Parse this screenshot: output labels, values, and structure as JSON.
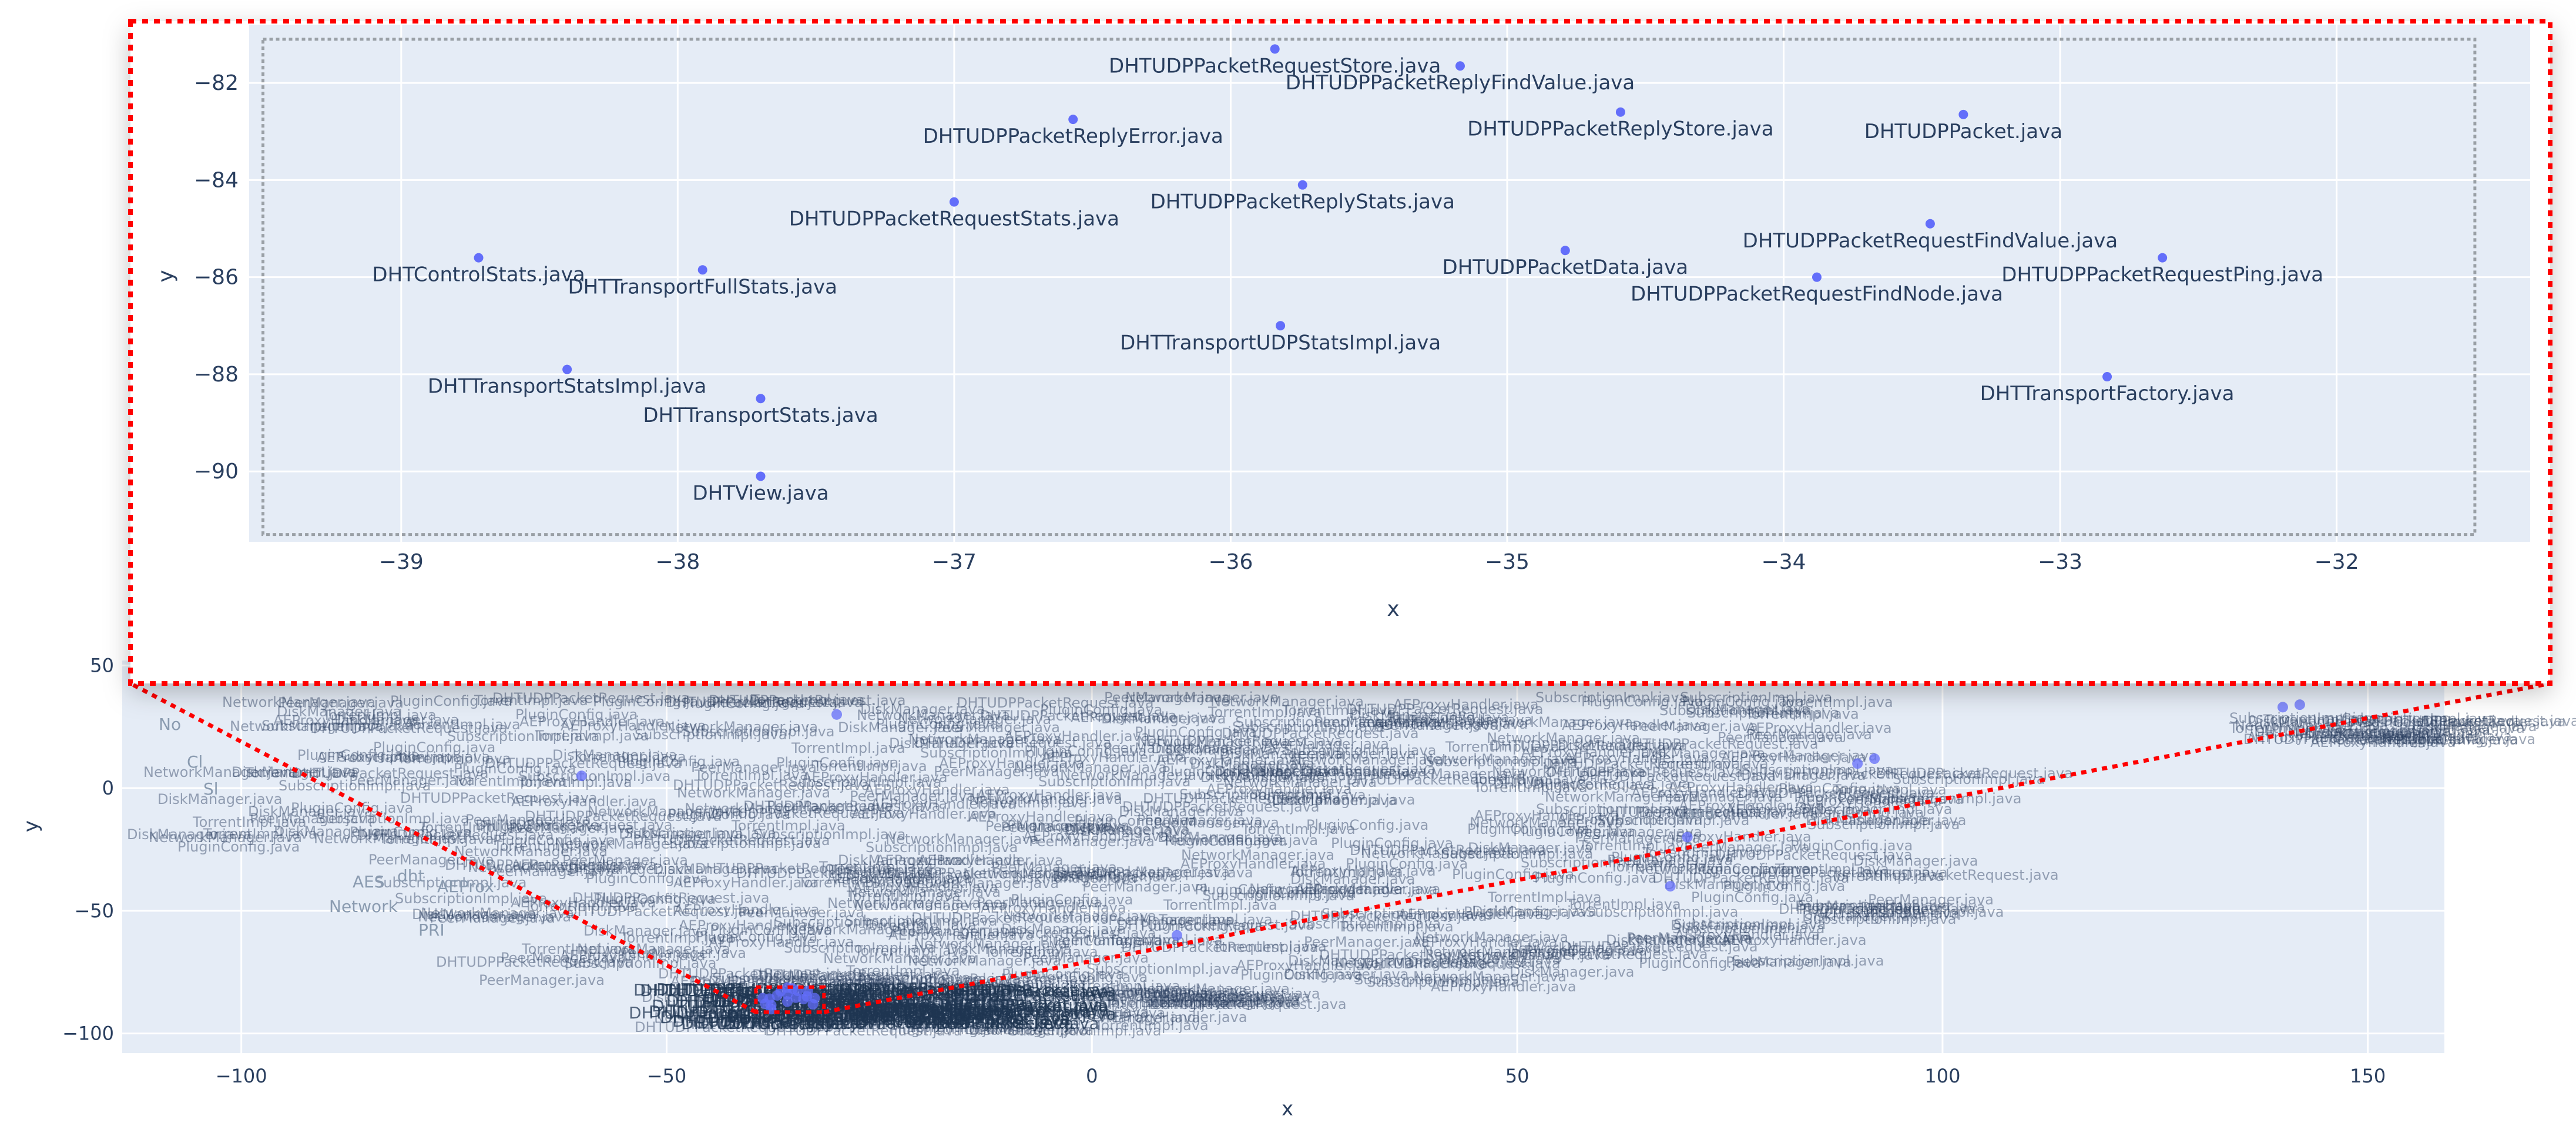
{
  "chart_data": [
    {
      "type": "scatter",
      "role": "overview",
      "xlabel": "x",
      "ylabel": "y",
      "xlim": [
        -114,
        159
      ],
      "ylim": [
        -108,
        52
      ],
      "xticks": [
        -100,
        -50,
        0,
        50,
        100,
        150
      ],
      "yticks": [
        -100,
        -50,
        0,
        50
      ],
      "grid": true,
      "legend": "none",
      "zoom_box": {
        "x": [
          -39.5,
          -31.5
        ],
        "y": [
          -91.3,
          -81.1
        ]
      },
      "visible_labels": [
        "Network",
        "AES",
        "AEProx",
        "dht",
        "PRI",
        "Sl",
        "Cl",
        "No",
        "java"
      ],
      "points": [
        {
          "x": -35.8,
          "y": -81.3
        },
        {
          "x": -35.2,
          "y": -81.7
        },
        {
          "x": -36.6,
          "y": -82.8
        },
        {
          "x": -34.6,
          "y": -82.6
        },
        {
          "x": -33.4,
          "y": -82.7
        },
        {
          "x": -37.0,
          "y": -84.5
        },
        {
          "x": -35.8,
          "y": -84.1
        },
        {
          "x": -38.7,
          "y": -85.6
        },
        {
          "x": -37.9,
          "y": -85.8
        },
        {
          "x": -34.8,
          "y": -85.4
        },
        {
          "x": -33.5,
          "y": -84.9
        },
        {
          "x": -33.9,
          "y": -86.0
        },
        {
          "x": -32.6,
          "y": -85.6
        },
        {
          "x": -35.8,
          "y": -87.0
        },
        {
          "x": -38.4,
          "y": -87.9
        },
        {
          "x": -37.7,
          "y": -88.5
        },
        {
          "x": -32.8,
          "y": -88.1
        },
        {
          "x": -37.7,
          "y": -90.1
        },
        {
          "x": 90,
          "y": 10
        },
        {
          "x": 92,
          "y": 12
        },
        {
          "x": 70,
          "y": -20
        },
        {
          "x": 68,
          "y": -40
        },
        {
          "x": 140,
          "y": 33
        },
        {
          "x": 142,
          "y": 34
        },
        {
          "x": -60,
          "y": 5
        },
        {
          "x": -30,
          "y": 30
        },
        {
          "x": 10,
          "y": -60
        }
      ]
    },
    {
      "type": "scatter",
      "role": "zoom-inset",
      "xlabel": "x",
      "ylabel": "y",
      "xlim": [
        -39.55,
        -31.3
      ],
      "ylim": [
        -91.45,
        -80.8
      ],
      "xticks": [
        -39,
        -38,
        -37,
        -36,
        -35,
        -34,
        -33,
        -32
      ],
      "yticks": [
        -82,
        -84,
        -86,
        -88,
        -90
      ],
      "grid": true,
      "legend": "none",
      "points": [
        {
          "label": "DHTUDPPacketRequestStore.java",
          "x": -35.84,
          "y": -81.3
        },
        {
          "label": "DHTUDPPacketReplyFindValue.java",
          "x": -35.17,
          "y": -81.65
        },
        {
          "label": "DHTUDPPacketReplyError.java",
          "x": -36.57,
          "y": -82.75
        },
        {
          "label": "DHTUDPPacketReplyStore.java",
          "x": -34.59,
          "y": -82.6
        },
        {
          "label": "DHTUDPPacket.java",
          "x": -33.35,
          "y": -82.65
        },
        {
          "label": "DHTUDPPacketRequestStats.java",
          "x": -37.0,
          "y": -84.45
        },
        {
          "label": "DHTUDPPacketReplyStats.java",
          "x": -35.74,
          "y": -84.1
        },
        {
          "label": "DHTControlStats.java",
          "x": -38.72,
          "y": -85.6
        },
        {
          "label": "DHTTransportFullStats.java",
          "x": -37.91,
          "y": -85.85
        },
        {
          "label": "DHTUDPPacketData.java",
          "x": -34.79,
          "y": -85.45
        },
        {
          "label": "DHTUDPPacketRequestFindValue.java",
          "x": -33.47,
          "y": -84.9
        },
        {
          "label": "DHTUDPPacketRequestFindNode.java",
          "x": -33.88,
          "y": -86.0
        },
        {
          "label": "DHTUDPPacketRequestPing.java",
          "x": -32.63,
          "y": -85.6
        },
        {
          "label": "DHTTransportUDPStatsImpl.java",
          "x": -35.82,
          "y": -87.0
        },
        {
          "label": "DHTTransportStatsImpl.java",
          "x": -38.4,
          "y": -87.9
        },
        {
          "label": "DHTTransportStats.java",
          "x": -37.7,
          "y": -88.5
        },
        {
          "label": "DHTTransportFactory.java",
          "x": -32.83,
          "y": -88.05
        },
        {
          "label": "DHTView.java",
          "x": -37.7,
          "y": -90.1
        }
      ]
    }
  ],
  "colors": {
    "plot_bg": "#e5ecf6",
    "grid": "#ffffff",
    "point": "#636efa",
    "label": "#2a3f5f",
    "tick": "#2a3f5f",
    "zoom_outline": "#ff0000",
    "cluster_text": "#2a3f5f"
  }
}
